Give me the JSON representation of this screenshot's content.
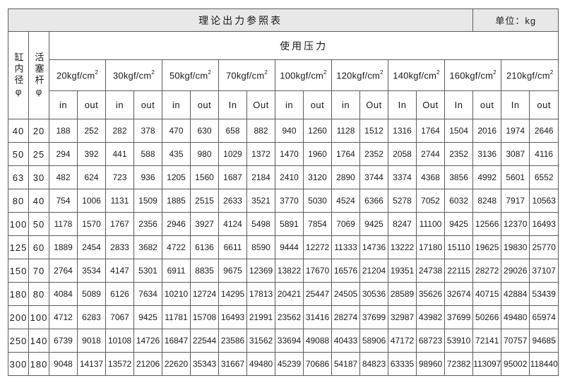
{
  "page": {
    "title": "理论出力参照表",
    "unit": "单位：kg"
  },
  "colors": {
    "header_bg": "#e8e8e8",
    "border": "#5c5c5c",
    "text": "#1a1a1a"
  },
  "table": {
    "bore_header": "缸内径φ",
    "rod_header": "活塞杆φ",
    "pressure_group": "使用压力",
    "pressure_columns": [
      {
        "base": "20kgf/cm",
        "sup": "2",
        "sub": [
          "in",
          "out"
        ]
      },
      {
        "base": "30kgf/cm",
        "sup": "2",
        "sub": [
          "in",
          "out"
        ]
      },
      {
        "base": "50kgf/cm",
        "sup": "2",
        "sub": [
          "in",
          "out"
        ]
      },
      {
        "base": "70kgf/cm",
        "sup": "2",
        "sub": [
          "In",
          "Out"
        ]
      },
      {
        "base": "100kgf/cm",
        "sup": "2",
        "sub": [
          "in",
          "out"
        ]
      },
      {
        "base": "120kgf/cm",
        "sup": "2",
        "sub": [
          "in",
          "Out"
        ]
      },
      {
        "base": "140kgf/cm",
        "sup": "2",
        "sub": [
          "In",
          "Out"
        ]
      },
      {
        "base": "160kgf/cm",
        "sup": "2",
        "sub": [
          "In",
          "out"
        ]
      },
      {
        "base": "210kgf/cm",
        "sup": "2",
        "sub": [
          "In",
          "out"
        ]
      }
    ],
    "rows": [
      {
        "bore": "40",
        "rod": "20",
        "values": [
          "188",
          "252",
          "282",
          "378",
          "470",
          "630",
          "658",
          "882",
          "940",
          "1260",
          "1128",
          "1512",
          "1316",
          "1764",
          "1504",
          "2016",
          "1974",
          "2646"
        ]
      },
      {
        "bore": "50",
        "rod": "25",
        "values": [
          "294",
          "392",
          "441",
          "588",
          "435",
          "980",
          "1029",
          "1372",
          "1470",
          "1960",
          "1764",
          "2352",
          "2058",
          "2744",
          "2352",
          "3136",
          "3087",
          "4116"
        ]
      },
      {
        "bore": "63",
        "rod": "30",
        "values": [
          "482",
          "624",
          "723",
          "936",
          "1205",
          "1560",
          "1687",
          "2184",
          "2410",
          "3120",
          "2890",
          "3744",
          "3374",
          "4368",
          "3856",
          "4992",
          "5601",
          "6552"
        ]
      },
      {
        "bore": "80",
        "rod": "40",
        "values": [
          "754",
          "1006",
          "1131",
          "1509",
          "1885",
          "2515",
          "2633",
          "3521",
          "3770",
          "5030",
          "4524",
          "6366",
          "5278",
          "7052",
          "6032",
          "8248",
          "7917",
          "10563"
        ]
      },
      {
        "bore": "100",
        "rod": "50",
        "values": [
          "1178",
          "1570",
          "1767",
          "2356",
          "2946",
          "3927",
          "4124",
          "5498",
          "5891",
          "7854",
          "7069",
          "9425",
          "8247",
          "11100",
          "9425",
          "12566",
          "12370",
          "16493"
        ]
      },
      {
        "bore": "125",
        "rod": "60",
        "values": [
          "1889",
          "2454",
          "2833",
          "3682",
          "4722",
          "6136",
          "6611",
          "8590",
          "9444",
          "12272",
          "11333",
          "14736",
          "13222",
          "17180",
          "15110",
          "19625",
          "19830",
          "25770"
        ]
      },
      {
        "bore": "150",
        "rod": "70",
        "values": [
          "2764",
          "3534",
          "4147",
          "5301",
          "6911",
          "8835",
          "9675",
          "12369",
          "13822",
          "17670",
          "16576",
          "21204",
          "19351",
          "24738",
          "22115",
          "28272",
          "29026",
          "37107"
        ]
      },
      {
        "bore": "180",
        "rod": "80",
        "values": [
          "4084",
          "5089",
          "6126",
          "7634",
          "10210",
          "12724",
          "14295",
          "17813",
          "20421",
          "25447",
          "24505",
          "30536",
          "28589",
          "35626",
          "32674",
          "40715",
          "42884",
          "53439"
        ]
      },
      {
        "bore": "200",
        "rod": "100",
        "values": [
          "4712",
          "6283",
          "7067",
          "9425",
          "11781",
          "15708",
          "16493",
          "21991",
          "23562",
          "31416",
          "28274",
          "37699",
          "32987",
          "43982",
          "37699",
          "50266",
          "49480",
          "65974"
        ]
      },
      {
        "bore": "250",
        "rod": "140",
        "values": [
          "6739",
          "9018",
          "10108",
          "14726",
          "16847",
          "22544",
          "23586",
          "31562",
          "33694",
          "49088",
          "40433",
          "58906",
          "47172",
          "68723",
          "53910",
          "72141",
          "70757",
          "94685"
        ]
      },
      {
        "bore": "300",
        "rod": "180",
        "values": [
          "9048",
          "14137",
          "13572",
          "21206",
          "22620",
          "35343",
          "31667",
          "49480",
          "45239",
          "70686",
          "54187",
          "84823",
          "63335",
          "98960",
          "72382",
          "113097",
          "95002",
          "118440"
        ]
      }
    ]
  }
}
